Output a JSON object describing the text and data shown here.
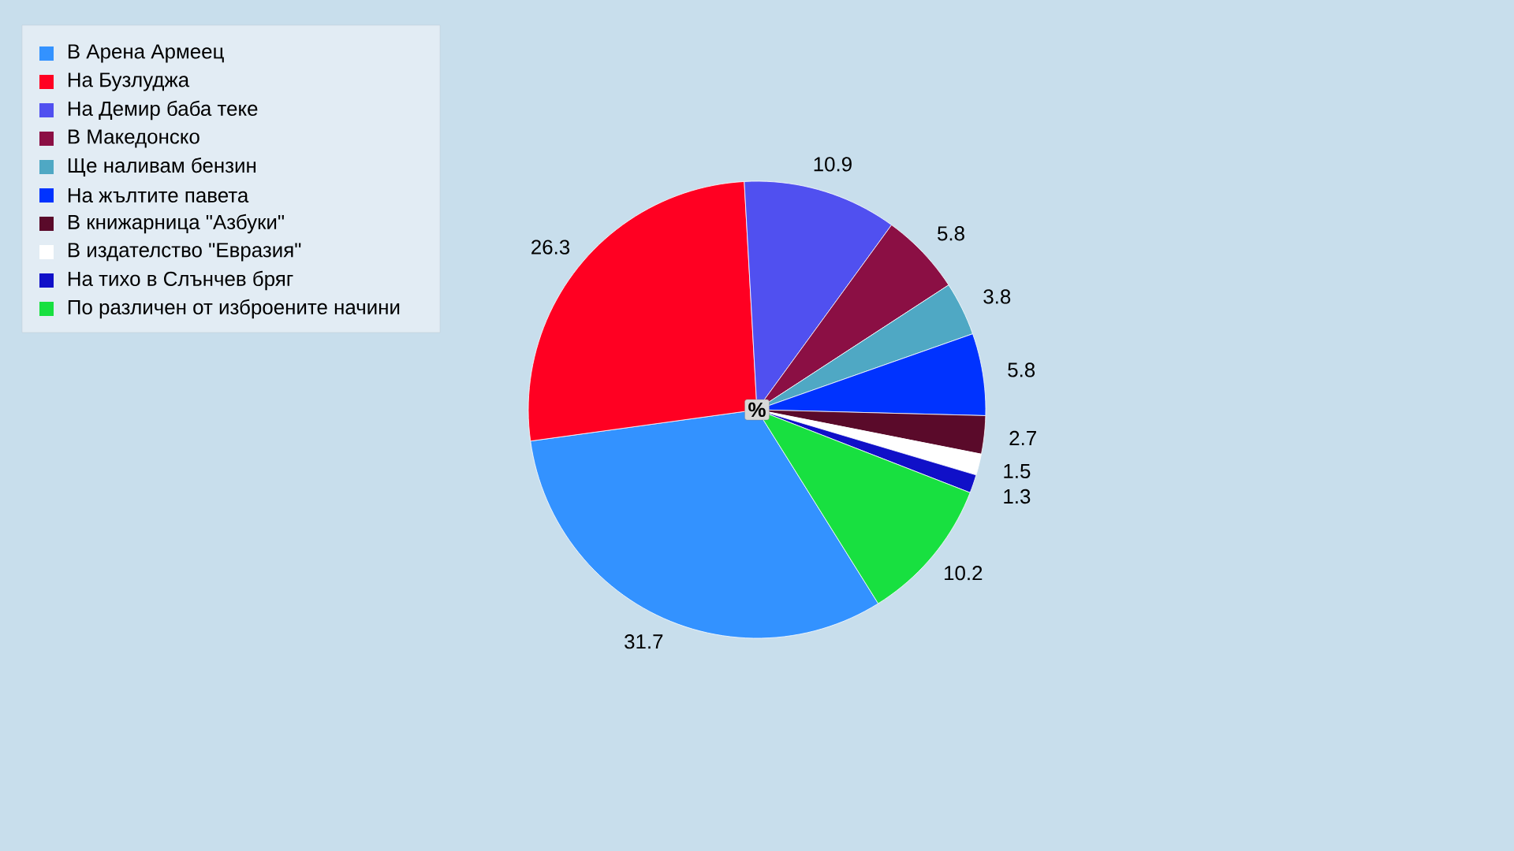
{
  "chart_data": {
    "type": "pie",
    "categories": [
      "В Арена Армеец",
      "На Бузлуджа",
      "На Демир баба теке",
      "В Македонско",
      "Ще наливам бензин",
      "На жълтите павета",
      "В книжарница \"Азбуки\"",
      "В издателство \"Евразия\"",
      "На тихо в Слънчев бряг",
      "По различен от изброените начини"
    ],
    "values": [
      31.7,
      26.3,
      10.9,
      5.8,
      3.8,
      5.8,
      2.7,
      1.5,
      1.3,
      10.2
    ],
    "colors": [
      "#3392ff",
      "#ff0022",
      "#5050f0",
      "#8b0f44",
      "#4fa8c4",
      "#0033ff",
      "#5a0a2a",
      "#ffffff",
      "#1010c8",
      "#18e040"
    ],
    "data_labels": true,
    "legend": "top left",
    "annotations": [
      "%"
    ]
  }
}
